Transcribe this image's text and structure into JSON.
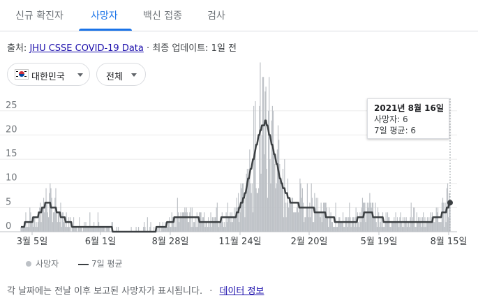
{
  "tabs": [
    {
      "label": "신규 확진자",
      "active": false
    },
    {
      "label": "사망자",
      "active": true
    },
    {
      "label": "백신 접종",
      "active": false
    },
    {
      "label": "검사",
      "active": false
    }
  ],
  "source": {
    "prefix": "출처:",
    "link": "JHU CSSE COVID-19 Data",
    "suffix": "· 최종 업데이트: 1일 전"
  },
  "filters": {
    "region": "대한민국",
    "scope": "전체"
  },
  "tooltip": {
    "date": "2021년 8월 16일",
    "deaths": "사망자: 6",
    "avg": "7일 평균: 6"
  },
  "legend": {
    "daily": "사망자",
    "avg": "7일 평균"
  },
  "footer": {
    "note": "각 날짜에는 전날 이후 보고된 사망자가 표시됩니다.",
    "separator": "·",
    "link": "데이터 정보"
  },
  "colors": {
    "bars": "#bdc1c6",
    "avg_line": "#3c4043",
    "accent": "#1a73e8"
  },
  "chart_data": {
    "type": "bar",
    "title": "",
    "xlabel": "",
    "ylabel": "",
    "ylim": [
      0,
      28
    ],
    "yticks": [
      0,
      5,
      10,
      15,
      20,
      25
    ],
    "x_start": "2020-03-05",
    "x_end": "2021-08-16",
    "xtick_labels": [
      "3월 5일",
      "6월 1일",
      "8월 28일",
      "11월 24일",
      "2월 20일",
      "5월 19일",
      "8월 15일"
    ],
    "highlight": {
      "x": "2021-08-16",
      "deaths": 6,
      "avg": 6
    },
    "series": [
      {
        "name": "7일 평균",
        "type": "line",
        "points": [
          {
            "x": "2020-03-05",
            "y": 1
          },
          {
            "x": "2020-03-15",
            "y": 2
          },
          {
            "x": "2020-03-25",
            "y": 3
          },
          {
            "x": "2020-04-05",
            "y": 6
          },
          {
            "x": "2020-04-15",
            "y": 5
          },
          {
            "x": "2020-04-25",
            "y": 3
          },
          {
            "x": "2020-05-10",
            "y": 1
          },
          {
            "x": "2020-06-10",
            "y": 1
          },
          {
            "x": "2020-07-10",
            "y": 0
          },
          {
            "x": "2020-08-10",
            "y": 0
          },
          {
            "x": "2020-08-28",
            "y": 1
          },
          {
            "x": "2020-09-05",
            "y": 2
          },
          {
            "x": "2020-09-15",
            "y": 3
          },
          {
            "x": "2020-10-01",
            "y": 3
          },
          {
            "x": "2020-10-20",
            "y": 2
          },
          {
            "x": "2020-11-24",
            "y": 3
          },
          {
            "x": "2020-12-05",
            "y": 7
          },
          {
            "x": "2020-12-15",
            "y": 14
          },
          {
            "x": "2020-12-25",
            "y": 21
          },
          {
            "x": "2021-01-01",
            "y": 23
          },
          {
            "x": "2021-01-10",
            "y": 17
          },
          {
            "x": "2021-01-20",
            "y": 10
          },
          {
            "x": "2021-02-01",
            "y": 6
          },
          {
            "x": "2021-02-20",
            "y": 5
          },
          {
            "x": "2021-03-10",
            "y": 4
          },
          {
            "x": "2021-04-01",
            "y": 2
          },
          {
            "x": "2021-04-20",
            "y": 2
          },
          {
            "x": "2021-05-05",
            "y": 4
          },
          {
            "x": "2021-05-19",
            "y": 3
          },
          {
            "x": "2021-06-01",
            "y": 2
          },
          {
            "x": "2021-07-01",
            "y": 2
          },
          {
            "x": "2021-07-20",
            "y": 2
          },
          {
            "x": "2021-08-01",
            "y": 3
          },
          {
            "x": "2021-08-10",
            "y": 4
          },
          {
            "x": "2021-08-16",
            "y": 6
          }
        ]
      }
    ]
  }
}
